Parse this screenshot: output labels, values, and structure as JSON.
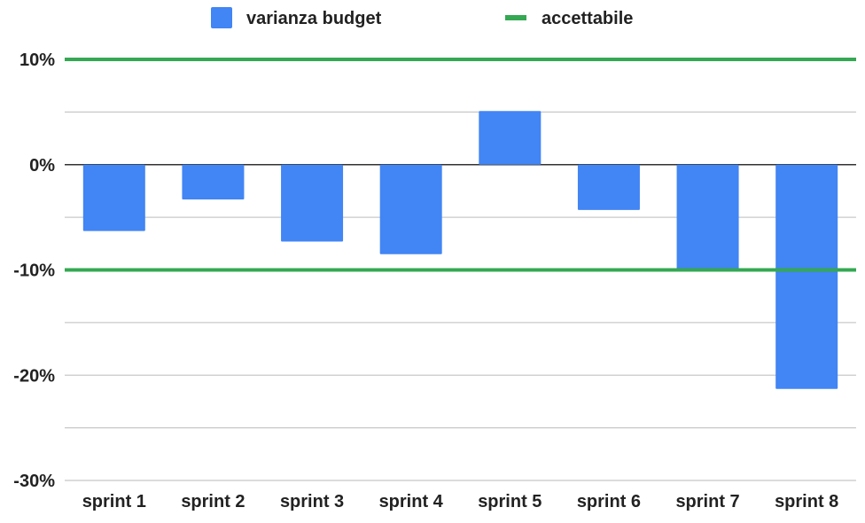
{
  "chart_data": {
    "type": "bar",
    "categories": [
      "sprint 1",
      "sprint 2",
      "sprint 3",
      "sprint 4",
      "sprint 5",
      "sprint 6",
      "sprint 7",
      "sprint 8"
    ],
    "series": [
      {
        "name": "varianza budget",
        "values": [
          -6.3,
          -3.3,
          -7.3,
          -8.5,
          5.1,
          -4.3,
          -10.0,
          -21.3
        ],
        "color": "#4285f4"
      }
    ],
    "reference_lines": [
      {
        "name": "accettabile",
        "values": [
          10,
          -10
        ],
        "color": "#34a853"
      }
    ],
    "ylim": [
      -30,
      10
    ],
    "yticks": [
      10,
      0,
      -10,
      -20,
      -30
    ],
    "ytick_labels": [
      "10%",
      "0%",
      "-10%",
      "-20%",
      "-30%"
    ],
    "minor_gridlines": [
      5,
      -5,
      -15,
      -25
    ],
    "grid": true,
    "legend_position": "top",
    "title": "",
    "xlabel": "",
    "ylabel": ""
  },
  "legend": {
    "items": [
      {
        "label": "varianza budget",
        "color": "#4285f4",
        "kind": "box"
      },
      {
        "label": "accettabile",
        "color": "#34a853",
        "kind": "line"
      }
    ]
  }
}
